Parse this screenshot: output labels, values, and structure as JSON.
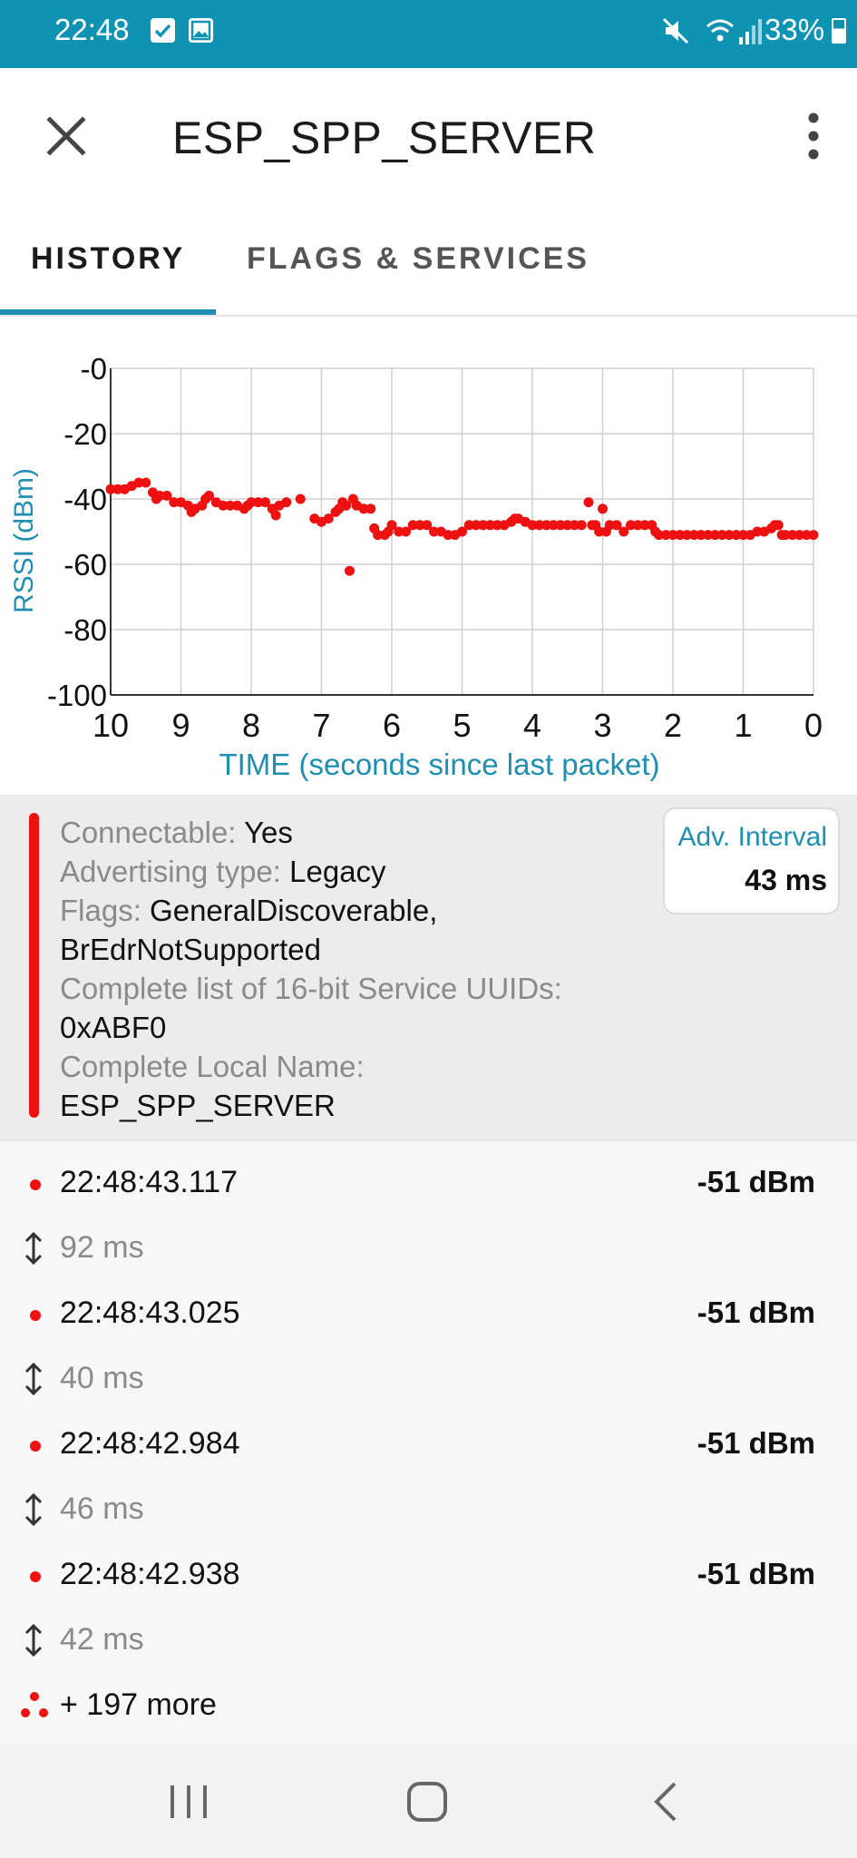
{
  "status_bar": {
    "time": "22:48",
    "battery": "33%",
    "icons": [
      "check-square-icon",
      "gallery-icon",
      "mute-icon",
      "wifi-icon",
      "signal-icon",
      "battery-icon"
    ],
    "color": "#0f93b3"
  },
  "app_bar": {
    "title": "ESP_SPP_SERVER",
    "close_icon": "close-icon",
    "menu_icon": "more-vert-icon"
  },
  "tabs": [
    {
      "label": "HISTORY",
      "active": true
    },
    {
      "label": "FLAGS & SERVICES",
      "active": false
    }
  ],
  "accent_color": "#1e8fb2",
  "chart_data": {
    "type": "scatter",
    "xlabel": "TIME (seconds since last packet)",
    "ylabel": "RSSI (dBm)",
    "x_ticks": [
      "10",
      "9",
      "8",
      "7",
      "6",
      "5",
      "4",
      "3",
      "2",
      "1",
      "0"
    ],
    "y_ticks": [
      "-0",
      "-20",
      "-40",
      "-60",
      "-80",
      "-100"
    ],
    "xlim": [
      10,
      0
    ],
    "ylim": [
      -100,
      0
    ],
    "x_reversed": true,
    "grid": true,
    "point_color": "#ee1111",
    "series": [
      {
        "points": [
          [
            10.0,
            -37
          ],
          [
            9.9,
            -37
          ],
          [
            9.8,
            -37
          ],
          [
            9.7,
            -36
          ],
          [
            9.6,
            -35
          ],
          [
            9.5,
            -35
          ],
          [
            9.4,
            -38
          ],
          [
            9.35,
            -40
          ],
          [
            9.3,
            -39
          ],
          [
            9.2,
            -39
          ],
          [
            9.1,
            -41
          ],
          [
            9.0,
            -41
          ],
          [
            8.9,
            -42
          ],
          [
            8.85,
            -44
          ],
          [
            8.8,
            -43
          ],
          [
            8.7,
            -42
          ],
          [
            8.65,
            -40
          ],
          [
            8.6,
            -39
          ],
          [
            8.5,
            -41
          ],
          [
            8.4,
            -42
          ],
          [
            8.3,
            -42
          ],
          [
            8.2,
            -42
          ],
          [
            8.1,
            -43
          ],
          [
            8.05,
            -42
          ],
          [
            8.0,
            -41
          ],
          [
            7.9,
            -41
          ],
          [
            7.8,
            -41
          ],
          [
            7.7,
            -43
          ],
          [
            7.65,
            -45
          ],
          [
            7.6,
            -42
          ],
          [
            7.5,
            -41
          ],
          [
            7.3,
            -40
          ],
          [
            7.1,
            -46
          ],
          [
            7.0,
            -47
          ],
          [
            6.9,
            -46
          ],
          [
            6.8,
            -44
          ],
          [
            6.75,
            -43
          ],
          [
            6.7,
            -41
          ],
          [
            6.65,
            -42
          ],
          [
            6.6,
            -62
          ],
          [
            6.55,
            -40
          ],
          [
            6.5,
            -42
          ],
          [
            6.4,
            -43
          ],
          [
            6.3,
            -43
          ],
          [
            6.25,
            -49
          ],
          [
            6.2,
            -51
          ],
          [
            6.1,
            -51
          ],
          [
            6.05,
            -50
          ],
          [
            6.0,
            -48
          ],
          [
            5.9,
            -50
          ],
          [
            5.8,
            -50
          ],
          [
            5.7,
            -48
          ],
          [
            5.6,
            -48
          ],
          [
            5.5,
            -48
          ],
          [
            5.4,
            -50
          ],
          [
            5.3,
            -50
          ],
          [
            5.2,
            -51
          ],
          [
            5.1,
            -51
          ],
          [
            5.0,
            -50
          ],
          [
            4.9,
            -48
          ],
          [
            4.8,
            -48
          ],
          [
            4.7,
            -48
          ],
          [
            4.6,
            -48
          ],
          [
            4.5,
            -48
          ],
          [
            4.4,
            -48
          ],
          [
            4.3,
            -47
          ],
          [
            4.25,
            -46
          ],
          [
            4.2,
            -46
          ],
          [
            4.1,
            -47
          ],
          [
            4.0,
            -48
          ],
          [
            3.9,
            -48
          ],
          [
            3.8,
            -48
          ],
          [
            3.7,
            -48
          ],
          [
            3.6,
            -48
          ],
          [
            3.5,
            -48
          ],
          [
            3.4,
            -48
          ],
          [
            3.3,
            -48
          ],
          [
            3.2,
            -41
          ],
          [
            3.15,
            -48
          ],
          [
            3.1,
            -48
          ],
          [
            3.05,
            -50
          ],
          [
            3.0,
            -43
          ],
          [
            2.95,
            -50
          ],
          [
            2.9,
            -48
          ],
          [
            2.8,
            -48
          ],
          [
            2.7,
            -50
          ],
          [
            2.6,
            -48
          ],
          [
            2.5,
            -48
          ],
          [
            2.4,
            -48
          ],
          [
            2.3,
            -48
          ],
          [
            2.25,
            -50
          ],
          [
            2.2,
            -51
          ],
          [
            2.1,
            -51
          ],
          [
            2.0,
            -51
          ],
          [
            1.9,
            -51
          ],
          [
            1.8,
            -51
          ],
          [
            1.7,
            -51
          ],
          [
            1.6,
            -51
          ],
          [
            1.5,
            -51
          ],
          [
            1.4,
            -51
          ],
          [
            1.3,
            -51
          ],
          [
            1.2,
            -51
          ],
          [
            1.1,
            -51
          ],
          [
            1.0,
            -51
          ],
          [
            0.9,
            -51
          ],
          [
            0.8,
            -50
          ],
          [
            0.7,
            -50
          ],
          [
            0.6,
            -49
          ],
          [
            0.55,
            -48
          ],
          [
            0.5,
            -48
          ],
          [
            0.45,
            -51
          ],
          [
            0.4,
            -51
          ],
          [
            0.3,
            -51
          ],
          [
            0.2,
            -51
          ],
          [
            0.1,
            -51
          ],
          [
            0.0,
            -51
          ]
        ]
      }
    ]
  },
  "advertisement": {
    "lines": [
      {
        "key": "Connectable:",
        "value": "Yes"
      },
      {
        "key": "Advertising type:",
        "value": "Legacy"
      },
      {
        "key": "Flags:",
        "value": "GeneralDiscoverable,"
      },
      {
        "key": "",
        "value": "BrEdrNotSupported"
      },
      {
        "key": "Complete list of 16-bit Service UUIDs:",
        "value": ""
      },
      {
        "key": "",
        "value": "0xABF0"
      },
      {
        "key": "Complete Local Name:",
        "value": ""
      },
      {
        "key": "",
        "value": "ESP_SPP_SERVER"
      }
    ],
    "interval_label": "Adv. Interval",
    "interval_value": "43 ms",
    "bar_color": "#ee1111"
  },
  "packets": [
    {
      "time": "22:48:43.117",
      "rssi": "-51 dBm"
    },
    {
      "delta": "92 ms"
    },
    {
      "time": "22:48:43.025",
      "rssi": "-51 dBm"
    },
    {
      "delta": "40 ms"
    },
    {
      "time": "22:48:42.984",
      "rssi": "-51 dBm"
    },
    {
      "delta": "46 ms"
    },
    {
      "time": "22:48:42.938",
      "rssi": "-51 dBm"
    },
    {
      "delta": "42 ms"
    }
  ],
  "more_text": "+ 197 more",
  "nav_bar": {
    "icons": [
      "recents-icon",
      "home-icon",
      "back-icon"
    ]
  }
}
